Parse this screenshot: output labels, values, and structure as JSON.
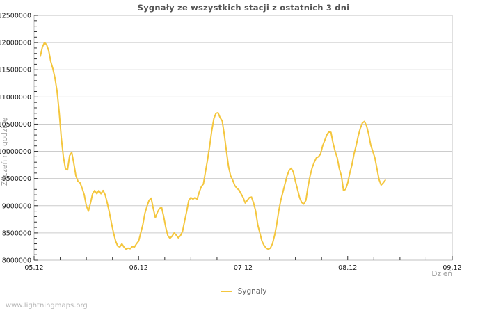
{
  "page": {
    "watermark": "www.lightningmaps.org"
  },
  "style": {
    "line_color": "#f4c63d",
    "grid_color": "#cccccc",
    "border_color": "#c0c0c0",
    "tick_color": "#333333",
    "tick_label_color": "#1a1a1a",
    "title_color": "#555555",
    "axis_title_color": "#999999",
    "legend_text_color": "#666666",
    "watermark_color": "#b5b5b5",
    "background": "#ffffff"
  },
  "chart_data": {
    "type": "line",
    "title": "Sygnały ze wszystkich stacji z ostatnich 3 dni",
    "xlabel": "Dzień",
    "ylabel": "Zliczeń na godzinę",
    "grid": true,
    "legend_position": "bottom-center",
    "legend": [
      {
        "name": "Sygnały",
        "color": "#f4c63d"
      }
    ],
    "ylim": [
      8000000,
      12500000
    ],
    "xlim_days": [
      0,
      4
    ],
    "y_ticks": [
      8000000,
      8500000,
      9000000,
      9500000,
      10000000,
      10500000,
      11000000,
      11500000,
      12000000,
      12500000
    ],
    "minor_y_step": 100000,
    "minor_x_step_days": 0.25,
    "x_ticks": [
      {
        "label": "05.12",
        "day": 0
      },
      {
        "label": "06.12",
        "day": 1
      },
      {
        "label": "07.12",
        "day": 2
      },
      {
        "label": "08.12",
        "day": 3
      },
      {
        "label": "09.12",
        "day": 4
      }
    ],
    "series": [
      {
        "name": "Sygnały",
        "color": "#f4c63d",
        "x_start_day": 0.06,
        "x_step_day": 0.02,
        "values": [
          11750000,
          11920000,
          12000000,
          11960000,
          11850000,
          11650000,
          11520000,
          11350000,
          11100000,
          10720000,
          10250000,
          9900000,
          9680000,
          9660000,
          9920000,
          9980000,
          9780000,
          9550000,
          9450000,
          9420000,
          9320000,
          9200000,
          9000000,
          8900000,
          9050000,
          9220000,
          9280000,
          9220000,
          9280000,
          9220000,
          9280000,
          9200000,
          9050000,
          8880000,
          8680000,
          8500000,
          8350000,
          8260000,
          8240000,
          8300000,
          8240000,
          8200000,
          8220000,
          8210000,
          8250000,
          8240000,
          8300000,
          8350000,
          8500000,
          8650000,
          8860000,
          8990000,
          9100000,
          9140000,
          8950000,
          8780000,
          8880000,
          8950000,
          8970000,
          8800000,
          8600000,
          8450000,
          8400000,
          8440000,
          8500000,
          8460000,
          8410000,
          8450000,
          8530000,
          8720000,
          8900000,
          9100000,
          9150000,
          9120000,
          9150000,
          9120000,
          9250000,
          9350000,
          9400000,
          9630000,
          9850000,
          10100000,
          10380000,
          10600000,
          10700000,
          10710000,
          10620000,
          10560000,
          10300000,
          10000000,
          9720000,
          9550000,
          9470000,
          9370000,
          9320000,
          9290000,
          9220000,
          9150000,
          9050000,
          9100000,
          9150000,
          9160000,
          9050000,
          8900000,
          8650000,
          8500000,
          8350000,
          8270000,
          8220000,
          8200000,
          8220000,
          8300000,
          8450000,
          8650000,
          8900000,
          9100000,
          9250000,
          9400000,
          9550000,
          9650000,
          9690000,
          9620000,
          9450000,
          9300000,
          9150000,
          9060000,
          9030000,
          9100000,
          9350000,
          9550000,
          9700000,
          9800000,
          9880000,
          9900000,
          9950000,
          10100000,
          10200000,
          10300000,
          10360000,
          10350000,
          10150000,
          10000000,
          9880000,
          9680000,
          9550000,
          9280000,
          9300000,
          9420000,
          9600000,
          9750000,
          9950000,
          10100000,
          10280000,
          10420000,
          10520000,
          10550000,
          10470000,
          10320000,
          10120000,
          10000000,
          9880000,
          9680000,
          9480000,
          9380000,
          9420000,
          9470000
        ]
      }
    ]
  }
}
